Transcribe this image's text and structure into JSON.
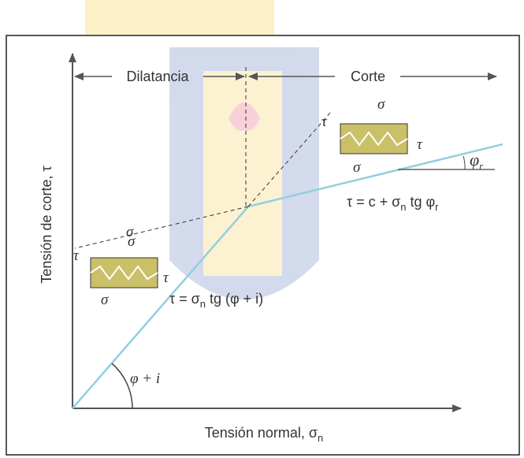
{
  "header": {
    "left_label": "Dilatancia",
    "right_label": "Corte"
  },
  "axes": {
    "y_label": "Tensión de corte, τ",
    "x_label": {
      "text": "Tensión normal, σ",
      "sub": "n"
    }
  },
  "equations": [
    {
      "before": "τ = σ",
      "sub": "n",
      "after": " tg (φ + i)"
    },
    {
      "before": "τ = c + σ",
      "sub": "n",
      "after": " tg φ",
      "sub2": "r"
    }
  ],
  "angles": {
    "origin": "φ + i",
    "residual": {
      "symbol": "φ",
      "sub": "r"
    }
  },
  "block_left": {
    "normal_top": "σ",
    "shear_side": "τ",
    "normal_bottom": "σ",
    "shear_line": "τ",
    "normal_line": "σ"
  },
  "block_right": {
    "normal_top": "σ",
    "shear_side": "τ",
    "normal_bottom": "σ",
    "shear_line": "τ"
  }
}
